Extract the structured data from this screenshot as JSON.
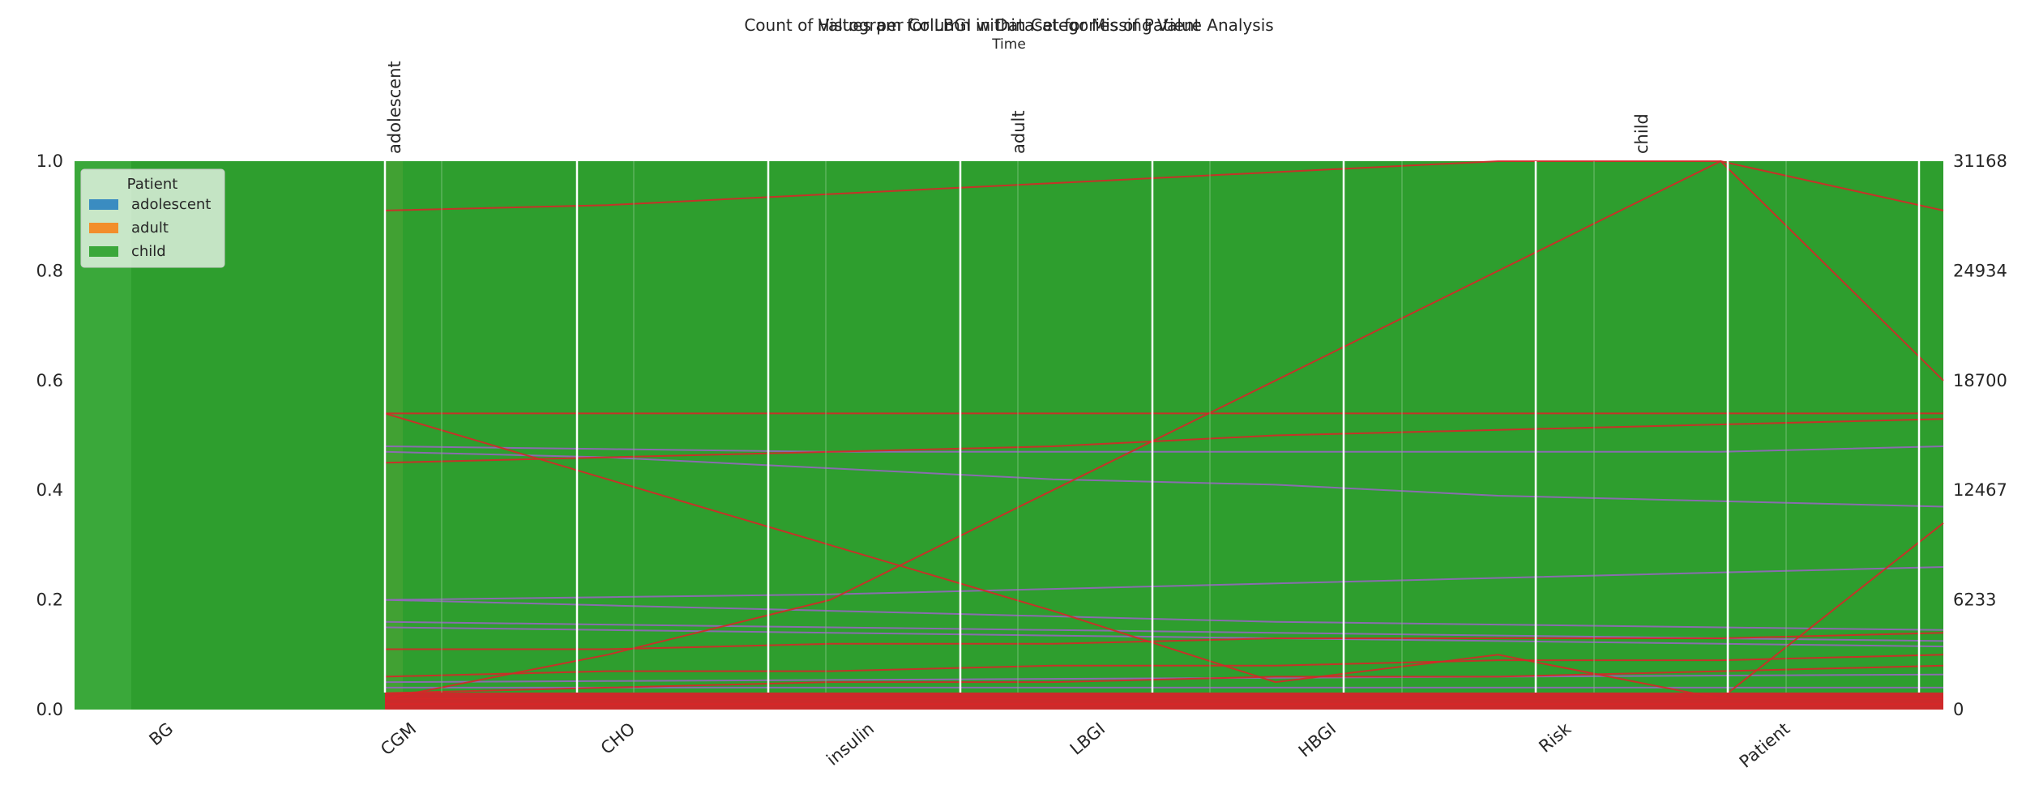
{
  "chart_data": {
    "type": "area",
    "title_back": "Count of Values per Column in Dataset for Missing Value Analysis",
    "title_front": "Histogram for LBGI within Categories of Patient",
    "subtitle": "Time",
    "axes": [
      "BG",
      "CGM",
      "CHO",
      "insulin",
      "LBGI",
      "HBGI",
      "Risk",
      "Patient"
    ],
    "left_axis": {
      "ylim": [
        0,
        1.0
      ],
      "ticks": [
        "0.0",
        "0.2",
        "0.4",
        "0.6",
        "0.8",
        "1.0"
      ]
    },
    "right_axis": {
      "ylim": [
        0,
        31168
      ],
      "ticks": [
        "0",
        "6233",
        "12467",
        "18700",
        "24934",
        "31168"
      ]
    },
    "top_labels": [
      "adolescent",
      "adult",
      "child"
    ],
    "legend": {
      "title": "Patient",
      "placement": "top-left",
      "items": [
        {
          "label": "adolescent",
          "color": "#3a8cc1"
        },
        {
          "label": "adult",
          "color": "#f28e2b"
        },
        {
          "label": "child",
          "color": "#3aa83a"
        }
      ]
    },
    "background_color": "#2e9e2e",
    "line_colors": {
      "red": "#d62728",
      "purple": "#9467bd",
      "pink": "#e377c2"
    },
    "red_lines": [
      [
        0.02,
        0.1,
        0.2,
        0.4,
        0.6,
        0.8,
        1.0,
        0.6
      ],
      [
        0.54,
        0.42,
        0.3,
        0.18,
        0.05,
        0.1,
        0.02,
        0.34
      ],
      [
        0.45,
        0.46,
        0.47,
        0.48,
        0.5,
        0.51,
        0.52,
        0.53
      ],
      [
        0.91,
        0.92,
        0.94,
        0.96,
        0.98,
        1.0,
        1.0,
        0.91
      ],
      [
        0.54,
        0.54,
        0.54,
        0.54,
        0.54,
        0.54,
        0.54,
        0.54
      ],
      [
        0.11,
        0.11,
        0.12,
        0.12,
        0.13,
        0.13,
        0.13,
        0.14
      ],
      [
        0.06,
        0.07,
        0.07,
        0.08,
        0.08,
        0.09,
        0.09,
        0.1
      ],
      [
        0.03,
        0.04,
        0.05,
        0.05,
        0.06,
        0.06,
        0.07,
        0.08
      ],
      [
        0.02,
        0.02,
        0.02,
        0.02,
        0.02,
        0.02,
        0.02,
        0.02
      ],
      [
        0.01,
        0.01,
        0.01,
        0.01,
        0.01,
        0.01,
        0.01,
        0.01
      ]
    ],
    "purple_lines": [
      [
        0.48,
        0.475,
        0.47,
        0.47,
        0.47,
        0.47,
        0.47,
        0.48
      ],
      [
        0.47,
        0.46,
        0.44,
        0.42,
        0.41,
        0.39,
        0.38,
        0.37
      ],
      [
        0.2,
        0.205,
        0.21,
        0.22,
        0.23,
        0.24,
        0.25,
        0.26
      ],
      [
        0.2,
        0.19,
        0.18,
        0.17,
        0.16,
        0.155,
        0.15,
        0.145
      ],
      [
        0.16,
        0.155,
        0.15,
        0.145,
        0.14,
        0.135,
        0.13,
        0.125
      ],
      [
        0.15,
        0.145,
        0.14,
        0.135,
        0.13,
        0.125,
        0.12,
        0.115
      ],
      [
        0.05,
        0.052,
        0.054,
        0.056,
        0.058,
        0.06,
        0.062,
        0.064
      ],
      [
        0.04,
        0.04,
        0.04,
        0.04,
        0.04,
        0.04,
        0.04,
        0.04
      ]
    ]
  }
}
